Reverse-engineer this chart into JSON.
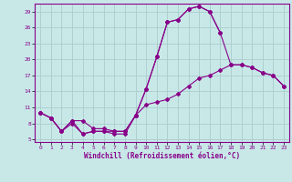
{
  "xlabel": "Windchill (Refroidissement éolien,°C)",
  "bg_color": "#c8e8e8",
  "grid_color": "#aacccc",
  "line_color": "#880088",
  "xmin": 0,
  "xmax": 23,
  "ymin": 5,
  "ymax": 29,
  "yticks": [
    5,
    8,
    11,
    14,
    17,
    20,
    23,
    26,
    29
  ],
  "xticks": [
    0,
    1,
    2,
    3,
    4,
    5,
    6,
    7,
    8,
    9,
    10,
    11,
    12,
    13,
    14,
    15,
    16,
    17,
    18,
    19,
    20,
    21,
    22,
    23
  ],
  "s1_x": [
    0,
    1,
    2,
    3,
    4,
    5,
    6,
    7,
    8,
    9,
    10,
    11,
    12,
    13,
    14,
    15,
    16,
    17
  ],
  "s1_y": [
    10,
    9,
    6.5,
    8.5,
    6,
    6.5,
    6.5,
    6.5,
    6.5,
    9.5,
    14.5,
    20.5,
    27,
    27.5,
    29.5,
    30,
    29,
    25
  ],
  "s2_x": [
    0,
    1,
    2,
    3,
    4,
    5,
    6,
    7,
    8,
    9,
    10,
    11,
    12,
    13,
    14,
    15,
    16,
    17,
    18,
    19,
    20,
    21,
    22,
    23
  ],
  "s2_y": [
    10,
    9,
    6.5,
    8.5,
    8.5,
    7,
    7,
    6.5,
    6.5,
    9.5,
    14.5,
    20.5,
    27,
    27.5,
    29.5,
    30,
    29,
    25,
    19,
    19,
    18.5,
    17.5,
    17,
    15
  ],
  "s3_x": [
    0,
    1,
    2,
    3,
    4,
    5,
    6,
    7,
    8,
    9,
    10,
    11,
    12,
    13,
    14,
    15,
    16,
    17,
    18,
    19,
    20,
    21,
    22,
    23
  ],
  "s3_y": [
    10,
    9,
    6.5,
    8,
    6,
    6.5,
    6.5,
    6,
    6,
    9.5,
    11.5,
    12,
    12.5,
    13.5,
    15,
    16.5,
    17,
    18,
    19,
    19,
    18.5,
    17.5,
    17,
    15
  ]
}
